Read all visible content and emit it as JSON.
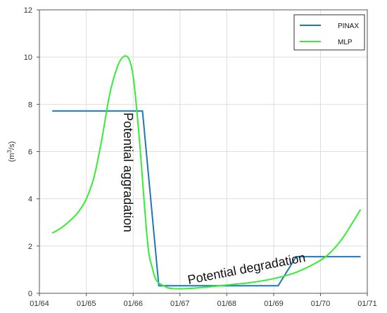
{
  "chart_data": {
    "type": "line",
    "title": "",
    "xlabel": "",
    "ylabel": "(m ³/s)",
    "ylabel_main": "(m",
    "ylabel_sup": "3",
    "ylabel_tail": "/s)",
    "x_ticks": [
      "01/64",
      "01/65",
      "01/66",
      "01/67",
      "01/68",
      "01/69",
      "01/70",
      "01/71"
    ],
    "xlim": [
      "01/64",
      "01/71"
    ],
    "ylim": [
      0,
      12
    ],
    "y_ticks": [
      0,
      2,
      4,
      6,
      8,
      10,
      12
    ],
    "grid": true,
    "legend_position": "top-right",
    "series": [
      {
        "name": "PINAX",
        "color": "#1f77b4",
        "points": [
          {
            "x": "1964-04-10",
            "y": 7.72
          },
          {
            "x": "1966-03-15",
            "y": 7.72
          },
          {
            "x": "1966-07-20",
            "y": 0.32
          },
          {
            "x": "1969-02-05",
            "y": 0.32
          },
          {
            "x": "1969-06-25",
            "y": 1.55
          },
          {
            "x": "1970-11-10",
            "y": 1.55
          }
        ]
      },
      {
        "name": "MLP",
        "color": "#33ee33",
        "points": [
          {
            "x": "1964-04-10",
            "y": 2.55
          },
          {
            "x": "1964-06-15",
            "y": 2.75
          },
          {
            "x": "1964-09-01",
            "y": 3.1
          },
          {
            "x": "1964-11-01",
            "y": 3.45
          },
          {
            "x": "1965-01-01",
            "y": 4.0
          },
          {
            "x": "1965-03-01",
            "y": 4.9
          },
          {
            "x": "1965-05-01",
            "y": 6.5
          },
          {
            "x": "1965-07-01",
            "y": 8.4
          },
          {
            "x": "1965-09-01",
            "y": 9.6
          },
          {
            "x": "1965-10-20",
            "y": 10.03
          },
          {
            "x": "1965-12-01",
            "y": 9.9
          },
          {
            "x": "1966-01-01",
            "y": 9.2
          },
          {
            "x": "1966-02-01",
            "y": 7.6
          },
          {
            "x": "1966-03-01",
            "y": 5.8
          },
          {
            "x": "1966-04-01",
            "y": 3.6
          },
          {
            "x": "1966-05-01",
            "y": 1.8
          },
          {
            "x": "1966-06-01",
            "y": 1.05
          },
          {
            "x": "1966-07-01",
            "y": 0.55
          },
          {
            "x": "1966-09-01",
            "y": 0.3
          },
          {
            "x": "1966-11-01",
            "y": 0.2
          },
          {
            "x": "1967-03-01",
            "y": 0.2
          },
          {
            "x": "1967-07-01",
            "y": 0.25
          },
          {
            "x": "1968-01-01",
            "y": 0.35
          },
          {
            "x": "1968-07-01",
            "y": 0.45
          },
          {
            "x": "1969-01-01",
            "y": 0.62
          },
          {
            "x": "1969-07-01",
            "y": 0.9
          },
          {
            "x": "1970-01-01",
            "y": 1.4
          },
          {
            "x": "1970-04-01",
            "y": 1.8
          },
          {
            "x": "1970-07-01",
            "y": 2.4
          },
          {
            "x": "1970-11-10",
            "y": 3.55
          }
        ]
      }
    ],
    "annotations": [
      {
        "text": "Potential aggradation",
        "orientation": "vertical"
      },
      {
        "text": "Potential degradation",
        "orientation": "slanted"
      }
    ]
  }
}
